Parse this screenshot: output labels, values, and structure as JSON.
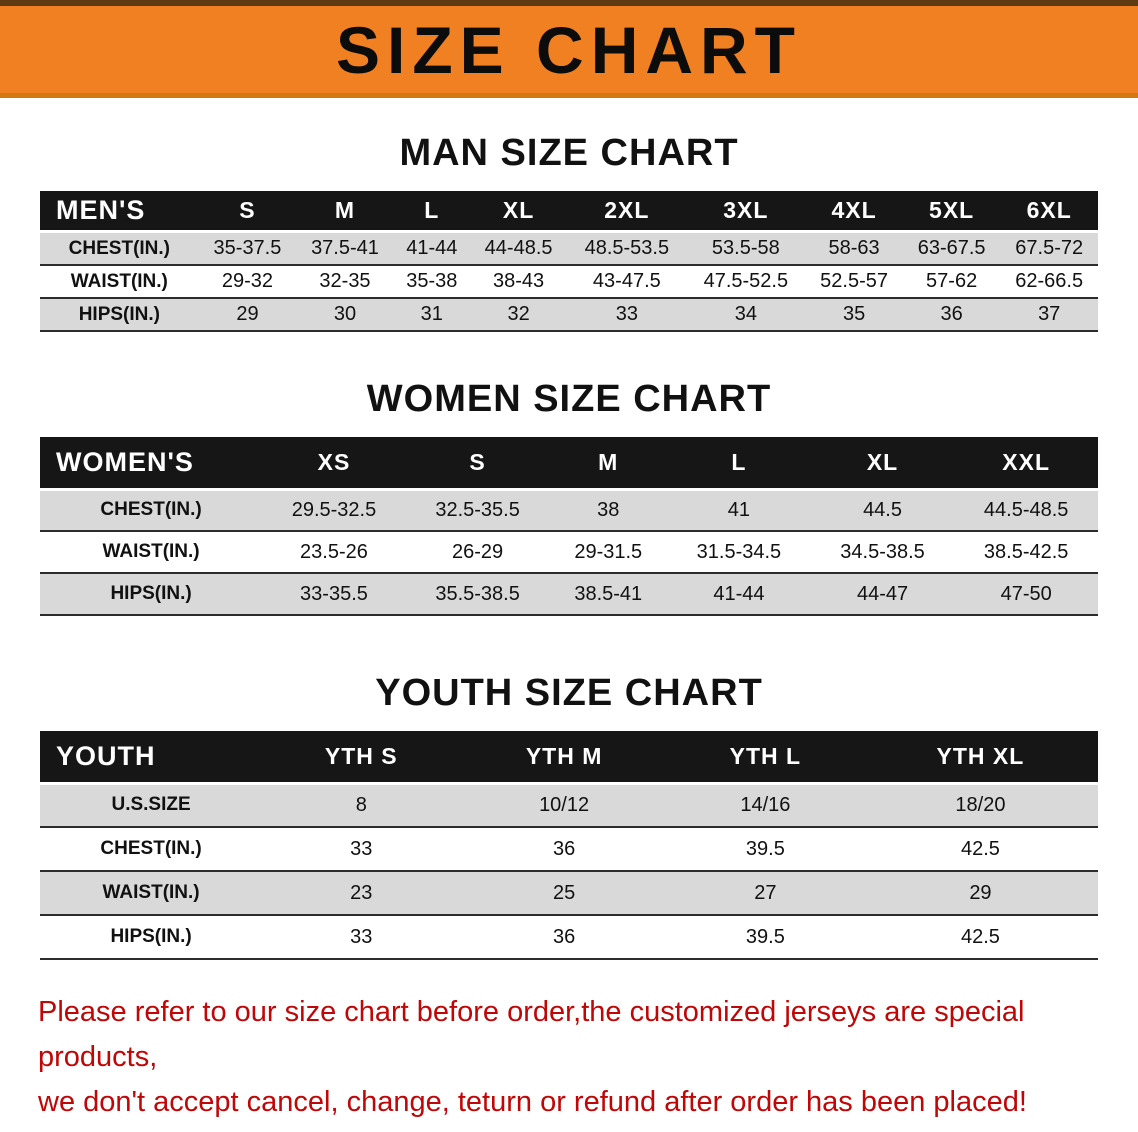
{
  "colors": {
    "banner-bg": "#f08021",
    "header-bg": "#161616",
    "row-alt": "#d9d9d9",
    "notice-color": "#c00606"
  },
  "banner": {
    "title": "SIZE CHART"
  },
  "sections": [
    {
      "heading": "MAN SIZE CHART",
      "table": {
        "header": [
          "MEN'S",
          "S",
          "M",
          "L",
          "XL",
          "2XL",
          "3XL",
          "4XL",
          "5XL",
          "6XL"
        ],
        "rows": [
          {
            "label": "CHEST(IN.)",
            "values": [
              "35-37.5",
              "37.5-41",
              "41-44",
              "44-48.5",
              "48.5-53.5",
              "53.5-58",
              "58-63",
              "63-67.5",
              "67.5-72"
            ]
          },
          {
            "label": "WAIST(IN.)",
            "values": [
              "29-32",
              "32-35",
              "35-38",
              "38-43",
              "43-47.5",
              "47.5-52.5",
              "52.5-57",
              "57-62",
              "62-66.5"
            ]
          },
          {
            "label": "HIPS(IN.)",
            "values": [
              "29",
              "30",
              "31",
              "32",
              "33",
              "34",
              "35",
              "36",
              "37"
            ]
          }
        ]
      }
    },
    {
      "heading": "WOMEN SIZE CHART",
      "table": {
        "header": [
          "WOMEN'S",
          "XS",
          "S",
          "M",
          "L",
          "XL",
          "XXL"
        ],
        "rows": [
          {
            "label": "CHEST(IN.)",
            "values": [
              "29.5-32.5",
              "32.5-35.5",
              "38",
              "41",
              "44.5",
              "44.5-48.5"
            ]
          },
          {
            "label": "WAIST(IN.)",
            "values": [
              "23.5-26",
              "26-29",
              "29-31.5",
              "31.5-34.5",
              "34.5-38.5",
              "38.5-42.5"
            ]
          },
          {
            "label": "HIPS(IN.)",
            "values": [
              "33-35.5",
              "35.5-38.5",
              "38.5-41",
              "41-44",
              "44-47",
              "47-50"
            ]
          }
        ]
      }
    },
    {
      "heading": "YOUTH SIZE CHART",
      "table": {
        "header": [
          "YOUTH",
          "YTH S",
          "YTH M",
          "YTH L",
          "YTH XL"
        ],
        "rows": [
          {
            "label": "U.S.SIZE",
            "values": [
              "8",
              "10/12",
              "14/16",
              "18/20"
            ]
          },
          {
            "label": "CHEST(IN.)",
            "values": [
              "33",
              "36",
              "39.5",
              "42.5"
            ]
          },
          {
            "label": "WAIST(IN.)",
            "values": [
              "23",
              "25",
              "27",
              "29"
            ]
          },
          {
            "label": "HIPS(IN.)",
            "values": [
              "33",
              "36",
              "39.5",
              "42.5"
            ]
          }
        ]
      }
    }
  ],
  "footer": {
    "lines": [
      "Please refer to our size chart before order,the customized jerseys are special products,",
      "we don't accept cancel, change, teturn or refund after order has been placed!"
    ]
  }
}
